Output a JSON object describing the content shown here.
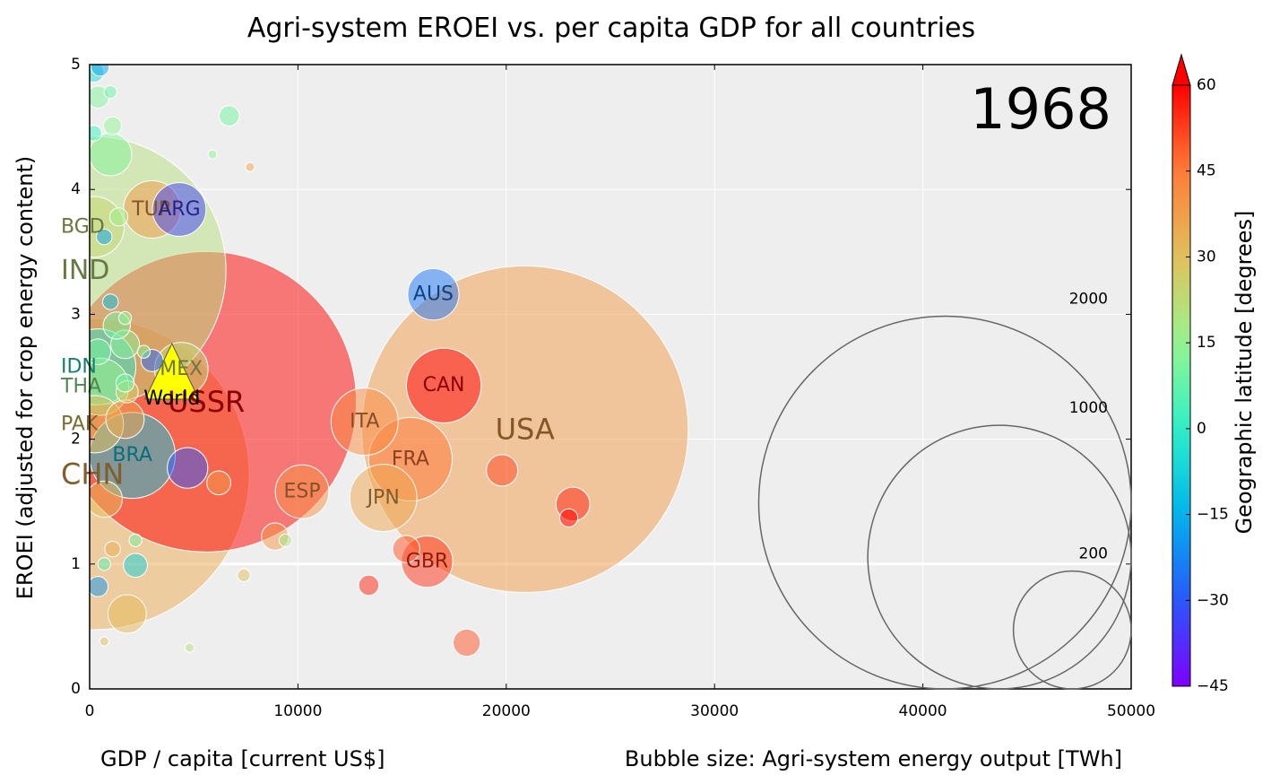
{
  "chart_data": {
    "type": "scatter",
    "title": "Agri-system EROEI vs. per capita GDP for all countries",
    "year": "1968",
    "xlabel": "GDP / capita [current US$]",
    "ylabel": "EROEI (adjusted for crop energy content)",
    "size_label": "Bubble size: Agri-system energy output [TWh]",
    "xlim": [
      0,
      50000
    ],
    "ylim": [
      0,
      5
    ],
    "xticks": [
      "0",
      "10000",
      "20000",
      "30000",
      "40000",
      "50000"
    ],
    "yticks": [
      "0",
      "1",
      "2",
      "3",
      "4",
      "5"
    ],
    "grid": true,
    "colorbar": {
      "label": "Geographic latitude [degrees]",
      "range": [
        -45,
        60
      ],
      "ticks": [
        "60",
        "45",
        "30",
        "15",
        "0",
        "−15",
        "−30",
        "−45"
      ],
      "tick_values": [
        60,
        45,
        30,
        15,
        0,
        -15,
        -30,
        -45
      ],
      "extend": "max"
    },
    "size_legend": {
      "values": [
        2000,
        1000,
        200
      ],
      "labels": [
        "2000",
        "1000",
        "200"
      ]
    },
    "world_marker": {
      "label": "World",
      "x": 3950,
      "y": 2.55,
      "color": "#ffff00"
    },
    "points": [
      {
        "label": "USA",
        "x": 20900,
        "y": 2.08,
        "size": 1300,
        "lat": 38
      },
      {
        "label": "USSR",
        "x": 5600,
        "y": 2.3,
        "size": 1100,
        "lat": 60
      },
      {
        "label": "CHN",
        "x": 200,
        "y": 1.72,
        "size": 1180,
        "lat": 35
      },
      {
        "label": "IND",
        "x": 100,
        "y": 3.35,
        "size": 880,
        "lat": 21
      },
      {
        "label": "BRA",
        "x": 2050,
        "y": 1.87,
        "size": 90,
        "lat": -10
      },
      {
        "label": "FRA",
        "x": 15400,
        "y": 1.84,
        "size": 85,
        "lat": 46
      },
      {
        "label": "CAN",
        "x": 17000,
        "y": 2.43,
        "size": 68,
        "lat": 60
      },
      {
        "label": "ITA",
        "x": 13200,
        "y": 2.14,
        "size": 55,
        "lat": 42
      },
      {
        "label": "JPN",
        "x": 14100,
        "y": 1.53,
        "size": 55,
        "lat": 36
      },
      {
        "label": "TUR",
        "x": 3000,
        "y": 3.84,
        "size": 40,
        "lat": 39
      },
      {
        "label": "ARG",
        "x": 4300,
        "y": 3.84,
        "size": 35,
        "lat": -34
      },
      {
        "label": "MEX",
        "x": 4400,
        "y": 2.56,
        "size": 35,
        "lat": 23
      },
      {
        "label": "ESP",
        "x": 10200,
        "y": 1.58,
        "size": 35,
        "lat": 40
      },
      {
        "label": "GBR",
        "x": 16200,
        "y": 1.02,
        "size": 32,
        "lat": 54
      },
      {
        "label": "AUS",
        "x": 16500,
        "y": 3.16,
        "size": 32,
        "lat": -25
      },
      {
        "label": "IDN",
        "x": 400,
        "y": 2.58,
        "size": 70,
        "lat": -2
      },
      {
        "label": "THA",
        "x": 500,
        "y": 2.42,
        "size": 40,
        "lat": 15
      },
      {
        "label": "PAK",
        "x": 250,
        "y": 2.12,
        "size": 40,
        "lat": 30
      },
      {
        "label": "BGD",
        "x": 200,
        "y": 3.7,
        "size": 45,
        "lat": 24
      },
      {
        "label": "",
        "x": 19800,
        "y": 1.75,
        "size": 12,
        "lat": 52
      },
      {
        "label": "",
        "x": 23200,
        "y": 1.48,
        "size": 14,
        "lat": 56
      },
      {
        "label": "",
        "x": 23000,
        "y": 1.37,
        "size": 4,
        "lat": 60
      },
      {
        "label": "",
        "x": 15200,
        "y": 1.12,
        "size": 9,
        "lat": 50
      },
      {
        "label": "",
        "x": 13400,
        "y": 0.83,
        "size": 5,
        "lat": 56
      },
      {
        "label": "",
        "x": 18100,
        "y": 0.37,
        "size": 9,
        "lat": 50
      },
      {
        "label": "",
        "x": 8900,
        "y": 1.22,
        "size": 9,
        "lat": 39
      },
      {
        "label": "",
        "x": 6200,
        "y": 1.65,
        "size": 7,
        "lat": 38
      },
      {
        "label": "",
        "x": 4700,
        "y": 1.77,
        "size": 20,
        "lat": -30
      },
      {
        "label": "",
        "x": 1700,
        "y": 2.16,
        "size": 18,
        "lat": 36
      },
      {
        "label": "",
        "x": 1700,
        "y": 2.76,
        "size": 10,
        "lat": 13
      },
      {
        "label": "",
        "x": 1300,
        "y": 2.91,
        "size": 9,
        "lat": 10
      },
      {
        "label": "",
        "x": 3000,
        "y": 2.63,
        "size": 6,
        "lat": -28
      },
      {
        "label": "",
        "x": 1800,
        "y": 2.38,
        "size": 6,
        "lat": 27
      },
      {
        "label": "",
        "x": 1700,
        "y": 2.45,
        "size": 4,
        "lat": 10
      },
      {
        "label": "",
        "x": 2200,
        "y": 0.99,
        "size": 7,
        "lat": -8
      },
      {
        "label": "",
        "x": 1800,
        "y": 0.6,
        "size": 18,
        "lat": 32
      },
      {
        "label": "",
        "x": 700,
        "y": 1.52,
        "size": 16,
        "lat": 32
      },
      {
        "label": "",
        "x": 400,
        "y": 0.82,
        "size": 5,
        "lat": -20
      },
      {
        "label": "",
        "x": 1000,
        "y": 4.28,
        "size": 22,
        "lat": 12
      },
      {
        "label": "",
        "x": 6700,
        "y": 4.59,
        "size": 5,
        "lat": 10
      },
      {
        "label": "",
        "x": 400,
        "y": 4.74,
        "size": 6,
        "lat": 12
      },
      {
        "label": "",
        "x": 1100,
        "y": 4.51,
        "size": 4,
        "lat": 14
      },
      {
        "label": "",
        "x": 200,
        "y": 4.94,
        "size": 5,
        "lat": -6
      },
      {
        "label": "",
        "x": 500,
        "y": 4.98,
        "size": 4,
        "lat": -18
      },
      {
        "label": "",
        "x": 200,
        "y": 4.45,
        "size": 3,
        "lat": 2
      },
      {
        "label": "",
        "x": 1000,
        "y": 4.78,
        "size": 2,
        "lat": 8
      },
      {
        "label": "",
        "x": 700,
        "y": 3.62,
        "size": 3,
        "lat": -18
      },
      {
        "label": "",
        "x": 1400,
        "y": 3.78,
        "size": 4,
        "lat": 16
      },
      {
        "label": "",
        "x": 1000,
        "y": 3.1,
        "size": 3,
        "lat": -12
      },
      {
        "label": "",
        "x": 400,
        "y": 2.7,
        "size": 8,
        "lat": 10
      },
      {
        "label": "",
        "x": 1700,
        "y": 2.97,
        "size": 2,
        "lat": 14
      },
      {
        "label": "",
        "x": 2600,
        "y": 2.7,
        "size": 2,
        "lat": 12
      },
      {
        "label": "",
        "x": 1100,
        "y": 1.12,
        "size": 3,
        "lat": 34
      },
      {
        "label": "",
        "x": 2200,
        "y": 1.19,
        "size": 2,
        "lat": 10
      },
      {
        "label": "",
        "x": 700,
        "y": 1.0,
        "size": 2,
        "lat": 6
      },
      {
        "label": "",
        "x": 9400,
        "y": 1.19,
        "size": 2,
        "lat": 18
      },
      {
        "label": "",
        "x": 7400,
        "y": 0.91,
        "size": 2,
        "lat": 30
      },
      {
        "label": "",
        "x": 5900,
        "y": 4.28,
        "size": 1,
        "lat": 14
      },
      {
        "label": "",
        "x": 7700,
        "y": 4.18,
        "size": 1,
        "lat": 36
      },
      {
        "label": "",
        "x": 4800,
        "y": 0.33,
        "size": 1,
        "lat": 20
      },
      {
        "label": "",
        "x": 700,
        "y": 0.38,
        "size": 1,
        "lat": 30
      }
    ]
  }
}
